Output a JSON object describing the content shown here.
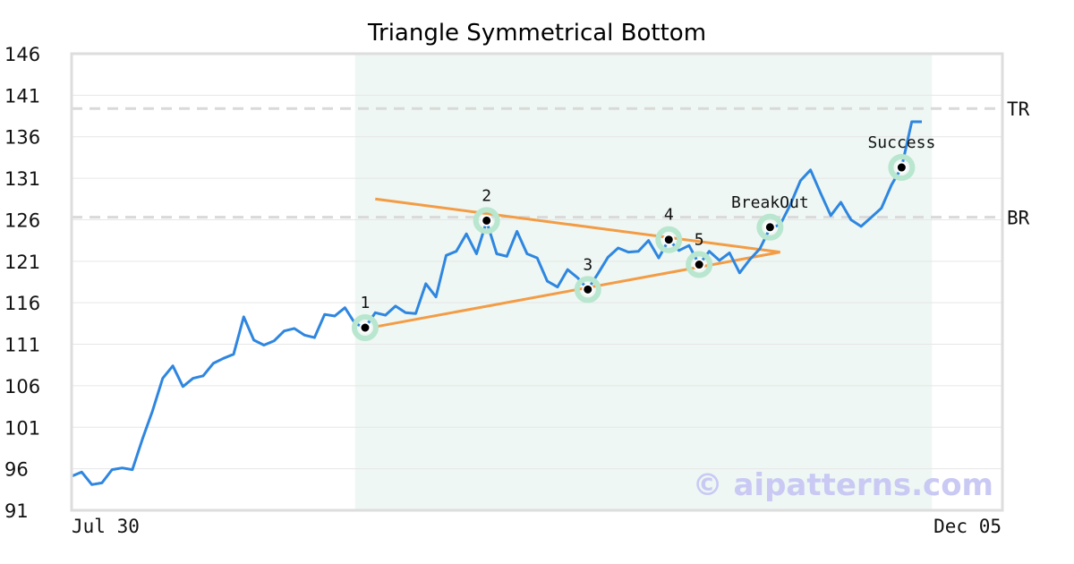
{
  "chart_data": {
    "type": "line",
    "title": "Triangle Symmetrical Bottom",
    "xlabel": "",
    "ylabel": "",
    "ylim": [
      91,
      146
    ],
    "yticks": [
      146,
      141,
      136,
      131,
      126,
      121,
      116,
      111,
      106,
      101,
      96,
      91
    ],
    "x_tick_labels": [
      "Jul 30",
      "Dec 05"
    ],
    "grid": true,
    "watermark": "© aipatterns.com",
    "colors": {
      "price": "#2e86e0",
      "trendline": "#f39c45",
      "pattern_shade": "#eef7f3",
      "marker_ring": "#b8e6cf",
      "reference_line": "#d9d9d9"
    },
    "series": [
      {
        "values": [
          95.1,
          95.6,
          94.1,
          94.3,
          95.9,
          96.1,
          95.9,
          99.6,
          103.0,
          106.9,
          108.4,
          105.9,
          106.9,
          107.2,
          108.7,
          109.3,
          109.8,
          114.3,
          111.5,
          110.9,
          111.4,
          112.6,
          112.9,
          112.1,
          111.8,
          114.6,
          114.4,
          115.4,
          113.5,
          113.0,
          114.8,
          114.5,
          115.6,
          114.8,
          114.7,
          118.3,
          116.7,
          121.7,
          122.2,
          124.3,
          121.9,
          125.8,
          121.9,
          121.6,
          124.6,
          121.9,
          121.4,
          118.6,
          117.9,
          120.0,
          119.0,
          117.6,
          119.5,
          121.5,
          122.6,
          122.1,
          122.2,
          123.5,
          121.4,
          123.6,
          122.3,
          122.9,
          120.6,
          122.2,
          121.1,
          122.0,
          119.6,
          121.2,
          122.5,
          125.0,
          125.4,
          127.8,
          130.7,
          132.0,
          129.2,
          126.5,
          128.1,
          126.0,
          125.2,
          126.3,
          127.4,
          130.2,
          132.3,
          137.8,
          137.8
        ]
      }
    ],
    "trendlines": [
      {
        "x1": 30,
        "y1": 128.5,
        "x2": 70,
        "y2": 122.1
      },
      {
        "x1": 30,
        "y1": 113.1,
        "x2": 70,
        "y2": 122.1
      }
    ],
    "pattern_range": [
      28,
      85
    ],
    "reference_lines": [
      {
        "label": "TR",
        "y": 139.4
      },
      {
        "label": "BR",
        "y": 126.3
      }
    ],
    "annotations": [
      {
        "label": "1",
        "x": 29,
        "y": 113.0
      },
      {
        "label": "2",
        "x": 41,
        "y": 125.9
      },
      {
        "label": "3",
        "x": 51,
        "y": 117.6
      },
      {
        "label": "4",
        "x": 59,
        "y": 123.6
      },
      {
        "label": "5",
        "x": 62,
        "y": 120.6
      },
      {
        "label": "BreakOut",
        "x": 69,
        "y": 125.1
      },
      {
        "label": "Success",
        "x": 82,
        "y": 132.3
      }
    ]
  }
}
